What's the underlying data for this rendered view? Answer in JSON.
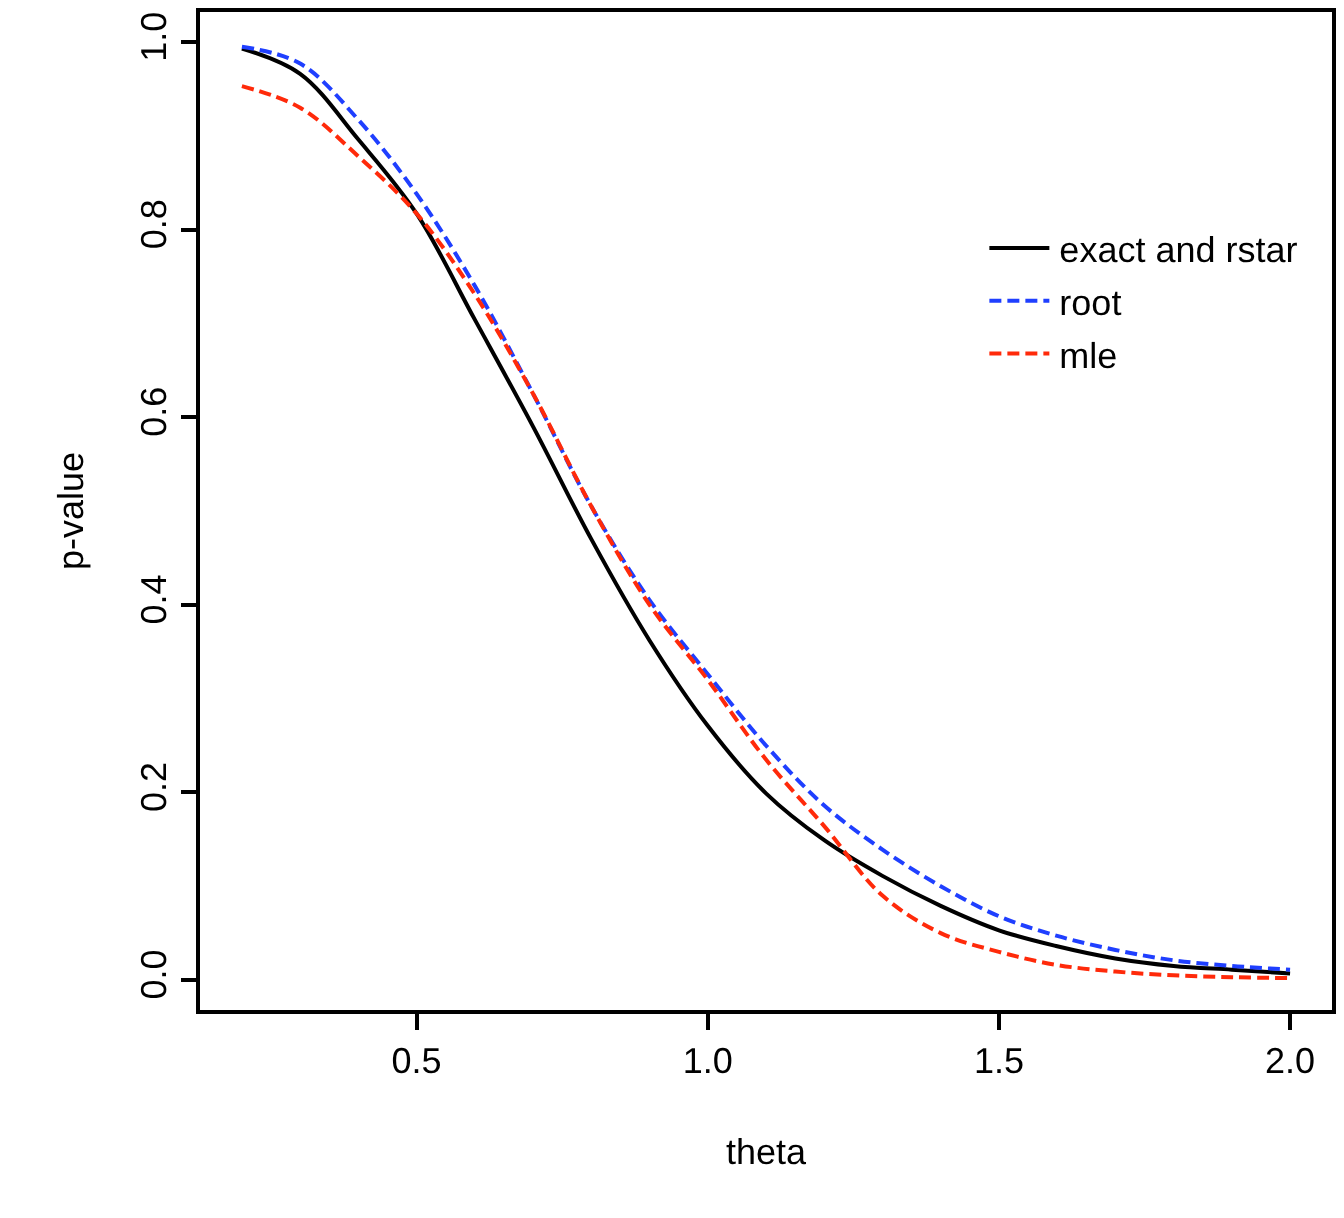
{
  "chart_data": {
    "type": "line",
    "xlabel": "theta",
    "ylabel": "p-value",
    "x": [
      0.2,
      0.3,
      0.4,
      0.5,
      0.6,
      0.7,
      0.8,
      0.9,
      1.0,
      1.1,
      1.2,
      1.3,
      1.4,
      1.5,
      1.6,
      1.7,
      1.8,
      1.9,
      2.0
    ],
    "series": [
      {
        "name": "exact and rstar",
        "color": "#000000",
        "line_style": "solid",
        "values": [
          0.993,
          0.966,
          0.896,
          0.817,
          0.704,
          0.59,
          0.47,
          0.362,
          0.271,
          0.199,
          0.149,
          0.111,
          0.079,
          0.053,
          0.036,
          0.023,
          0.015,
          0.011,
          0.007
        ]
      },
      {
        "name": "root",
        "color": "#1f3fff",
        "line_style": "dashed",
        "values": [
          0.995,
          0.977,
          0.917,
          0.838,
          0.74,
          0.625,
          0.505,
          0.405,
          0.326,
          0.25,
          0.186,
          0.139,
          0.1,
          0.068,
          0.047,
          0.032,
          0.021,
          0.015,
          0.011
        ]
      },
      {
        "name": "mle",
        "color": "#ff2a0a",
        "line_style": "dashed",
        "values": [
          0.953,
          0.93,
          0.878,
          0.817,
          0.731,
          0.625,
          0.505,
          0.4,
          0.32,
          0.235,
          0.164,
          0.09,
          0.05,
          0.03,
          0.016,
          0.009,
          0.005,
          0.003,
          0.002
        ]
      }
    ],
    "xlim": [
      0.128,
      2.072
    ],
    "ylim": [
      -0.032,
      1.032
    ],
    "xticks": [
      0.5,
      {
        "value": 1,
        "label": "1.0"
      },
      1.5,
      {
        "value": 2,
        "label": "2.0"
      }
    ],
    "yticks": [
      {
        "value": 0,
        "label": "0.0"
      },
      0.2,
      0.4,
      0.6,
      0.8,
      {
        "value": 1,
        "label": "1.0"
      }
    ],
    "legend": "top right",
    "marker": "none"
  }
}
